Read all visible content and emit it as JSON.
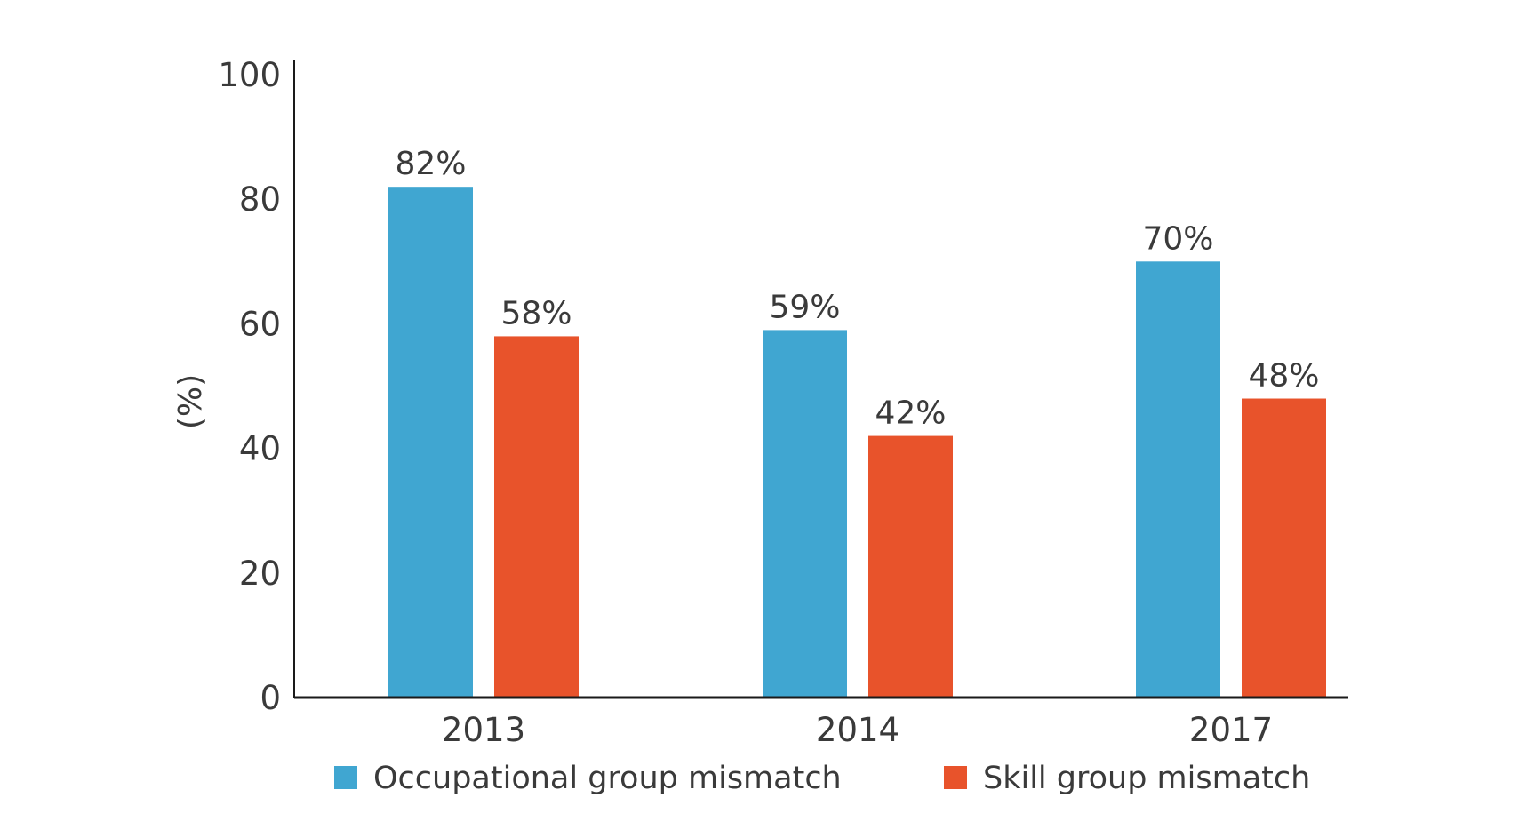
{
  "chart_data": {
    "type": "bar",
    "title": "",
    "xlabel": "",
    "ylabel": "(%)",
    "ylim": [
      0,
      100
    ],
    "yticks": [
      0,
      20,
      40,
      60,
      80,
      100
    ],
    "categories": [
      "2013",
      "2014",
      "2017"
    ],
    "series": [
      {
        "name": "Occupational group mismatch",
        "values": [
          82,
          59,
          70
        ],
        "labels": [
          "82%",
          "59%",
          "70%"
        ],
        "color": "#40A6D1"
      },
      {
        "name": "Skill group mismatch",
        "values": [
          58,
          42,
          48
        ],
        "labels": [
          "58%",
          "42%",
          "48%"
        ],
        "color": "#E8532B"
      }
    ],
    "grid": false,
    "legend": "bottom"
  }
}
